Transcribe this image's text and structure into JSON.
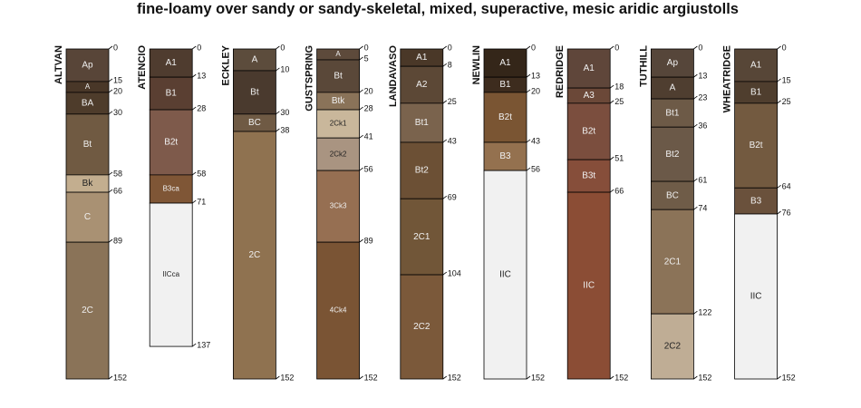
{
  "chart_data": {
    "type": "soil-profile-sketch",
    "title": "fine-loamy over sandy or sandy-skeletal, mixed, superactive, mesic aridic argiustolls",
    "depth_unit": "cm",
    "depth_range": [
      0,
      152
    ],
    "profiles": [
      {
        "name": "ALTVAN",
        "horizons": [
          {
            "name": "Ap",
            "top": 0,
            "bottom": 15,
            "color": "#584538"
          },
          {
            "name": "A",
            "top": 15,
            "bottom": 20,
            "color": "#493728"
          },
          {
            "name": "BA",
            "top": 20,
            "bottom": 30,
            "color": "#4e3c2b"
          },
          {
            "name": "Bt",
            "top": 30,
            "bottom": 58,
            "color": "#705a42"
          },
          {
            "name": "Bk",
            "top": 58,
            "bottom": 66,
            "color": "#c3ae8f"
          },
          {
            "name": "C",
            "top": 66,
            "bottom": 89,
            "color": "#a99173"
          },
          {
            "name": "2C",
            "top": 89,
            "bottom": 152,
            "color": "#8a7358"
          }
        ]
      },
      {
        "name": "ATENCIO",
        "horizons": [
          {
            "name": "A1",
            "top": 0,
            "bottom": 13,
            "color": "#4f3c2f"
          },
          {
            "name": "B1",
            "top": 13,
            "bottom": 28,
            "color": "#5a3f32"
          },
          {
            "name": "B2t",
            "top": 28,
            "bottom": 58,
            "color": "#7e5a4b"
          },
          {
            "name": "B3ca",
            "top": 58,
            "bottom": 71,
            "color": "#7f5636"
          },
          {
            "name": "IICca",
            "top": 71,
            "bottom": 137,
            "color": "#f1f1f1"
          }
        ]
      },
      {
        "name": "ECKLEY",
        "horizons": [
          {
            "name": "A",
            "top": 0,
            "bottom": 10,
            "color": "#5c4c3c"
          },
          {
            "name": "Bt",
            "top": 10,
            "bottom": 30,
            "color": "#4a3a2e"
          },
          {
            "name": "BC",
            "top": 30,
            "bottom": 38,
            "color": "#6f5a44"
          },
          {
            "name": "2C",
            "top": 38,
            "bottom": 152,
            "color": "#8f7250"
          }
        ]
      },
      {
        "name": "GUSTSPRING",
        "horizons": [
          {
            "name": "A",
            "top": 0,
            "bottom": 5,
            "color": "#5d4a3b"
          },
          {
            "name": "Bt",
            "top": 5,
            "bottom": 20,
            "color": "#5a4839"
          },
          {
            "name": "Btk",
            "top": 20,
            "bottom": 28,
            "color": "#8a7359"
          },
          {
            "name": "2Ck1",
            "top": 28,
            "bottom": 41,
            "color": "#c9b79b"
          },
          {
            "name": "2Ck2",
            "top": 41,
            "bottom": 56,
            "color": "#a99481"
          },
          {
            "name": "3Ck3",
            "top": 56,
            "bottom": 89,
            "color": "#966f52"
          },
          {
            "name": "4Ck4",
            "top": 89,
            "bottom": 152,
            "color": "#7a5434"
          }
        ]
      },
      {
        "name": "LANDAVASO",
        "horizons": [
          {
            "name": "A1",
            "top": 0,
            "bottom": 8,
            "color": "#4a3828"
          },
          {
            "name": "A2",
            "top": 8,
            "bottom": 25,
            "color": "#5c4836"
          },
          {
            "name": "Bt1",
            "top": 25,
            "bottom": 43,
            "color": "#7a634d"
          },
          {
            "name": "Bt2",
            "top": 43,
            "bottom": 69,
            "color": "#6c5035"
          },
          {
            "name": "2C1",
            "top": 69,
            "bottom": 104,
            "color": "#715638"
          },
          {
            "name": "2C2",
            "top": 104,
            "bottom": 152,
            "color": "#7b593a"
          }
        ]
      },
      {
        "name": "NEWLIN",
        "horizons": [
          {
            "name": "A1",
            "top": 0,
            "bottom": 13,
            "color": "#342619"
          },
          {
            "name": "B1",
            "top": 13,
            "bottom": 20,
            "color": "#3d2c1e"
          },
          {
            "name": "B2t",
            "top": 20,
            "bottom": 43,
            "color": "#7a5533"
          },
          {
            "name": "B3",
            "top": 43,
            "bottom": 56,
            "color": "#94714f"
          },
          {
            "name": "IIC",
            "top": 56,
            "bottom": 152,
            "color": "#f1f1f1"
          }
        ]
      },
      {
        "name": "REDRIDGE",
        "horizons": [
          {
            "name": "A1",
            "top": 0,
            "bottom": 18,
            "color": "#5f463a"
          },
          {
            "name": "A3",
            "top": 18,
            "bottom": 25,
            "color": "#6b4838"
          },
          {
            "name": "B2t",
            "top": 25,
            "bottom": 51,
            "color": "#7b4e3e"
          },
          {
            "name": "B3t",
            "top": 51,
            "bottom": 66,
            "color": "#864e3a"
          },
          {
            "name": "IIC",
            "top": 66,
            "bottom": 152,
            "color": "#8b4d35"
          }
        ]
      },
      {
        "name": "TUTHILL",
        "horizons": [
          {
            "name": "Ap",
            "top": 0,
            "bottom": 13,
            "color": "#56463a"
          },
          {
            "name": "A",
            "top": 13,
            "bottom": 23,
            "color": "#4f3e30"
          },
          {
            "name": "Bt1",
            "top": 23,
            "bottom": 36,
            "color": "#6d5a47"
          },
          {
            "name": "Bt2",
            "top": 36,
            "bottom": 61,
            "color": "#6b5948"
          },
          {
            "name": "BC",
            "top": 61,
            "bottom": 74,
            "color": "#6f5c48"
          },
          {
            "name": "2C1",
            "top": 74,
            "bottom": 122,
            "color": "#8b7358"
          },
          {
            "name": "2C2",
            "top": 122,
            "bottom": 152,
            "color": "#bfad95"
          }
        ]
      },
      {
        "name": "WHEATRIDGE",
        "horizons": [
          {
            "name": "A1",
            "top": 0,
            "bottom": 15,
            "color": "#574637"
          },
          {
            "name": "B1",
            "top": 15,
            "bottom": 25,
            "color": "#4f3e2e"
          },
          {
            "name": "B2t",
            "top": 25,
            "bottom": 64,
            "color": "#735a40"
          },
          {
            "name": "B3",
            "top": 64,
            "bottom": 76,
            "color": "#6a513c"
          },
          {
            "name": "IIC",
            "top": 76,
            "bottom": 152,
            "color": "#f1f1f1"
          }
        ]
      }
    ]
  }
}
